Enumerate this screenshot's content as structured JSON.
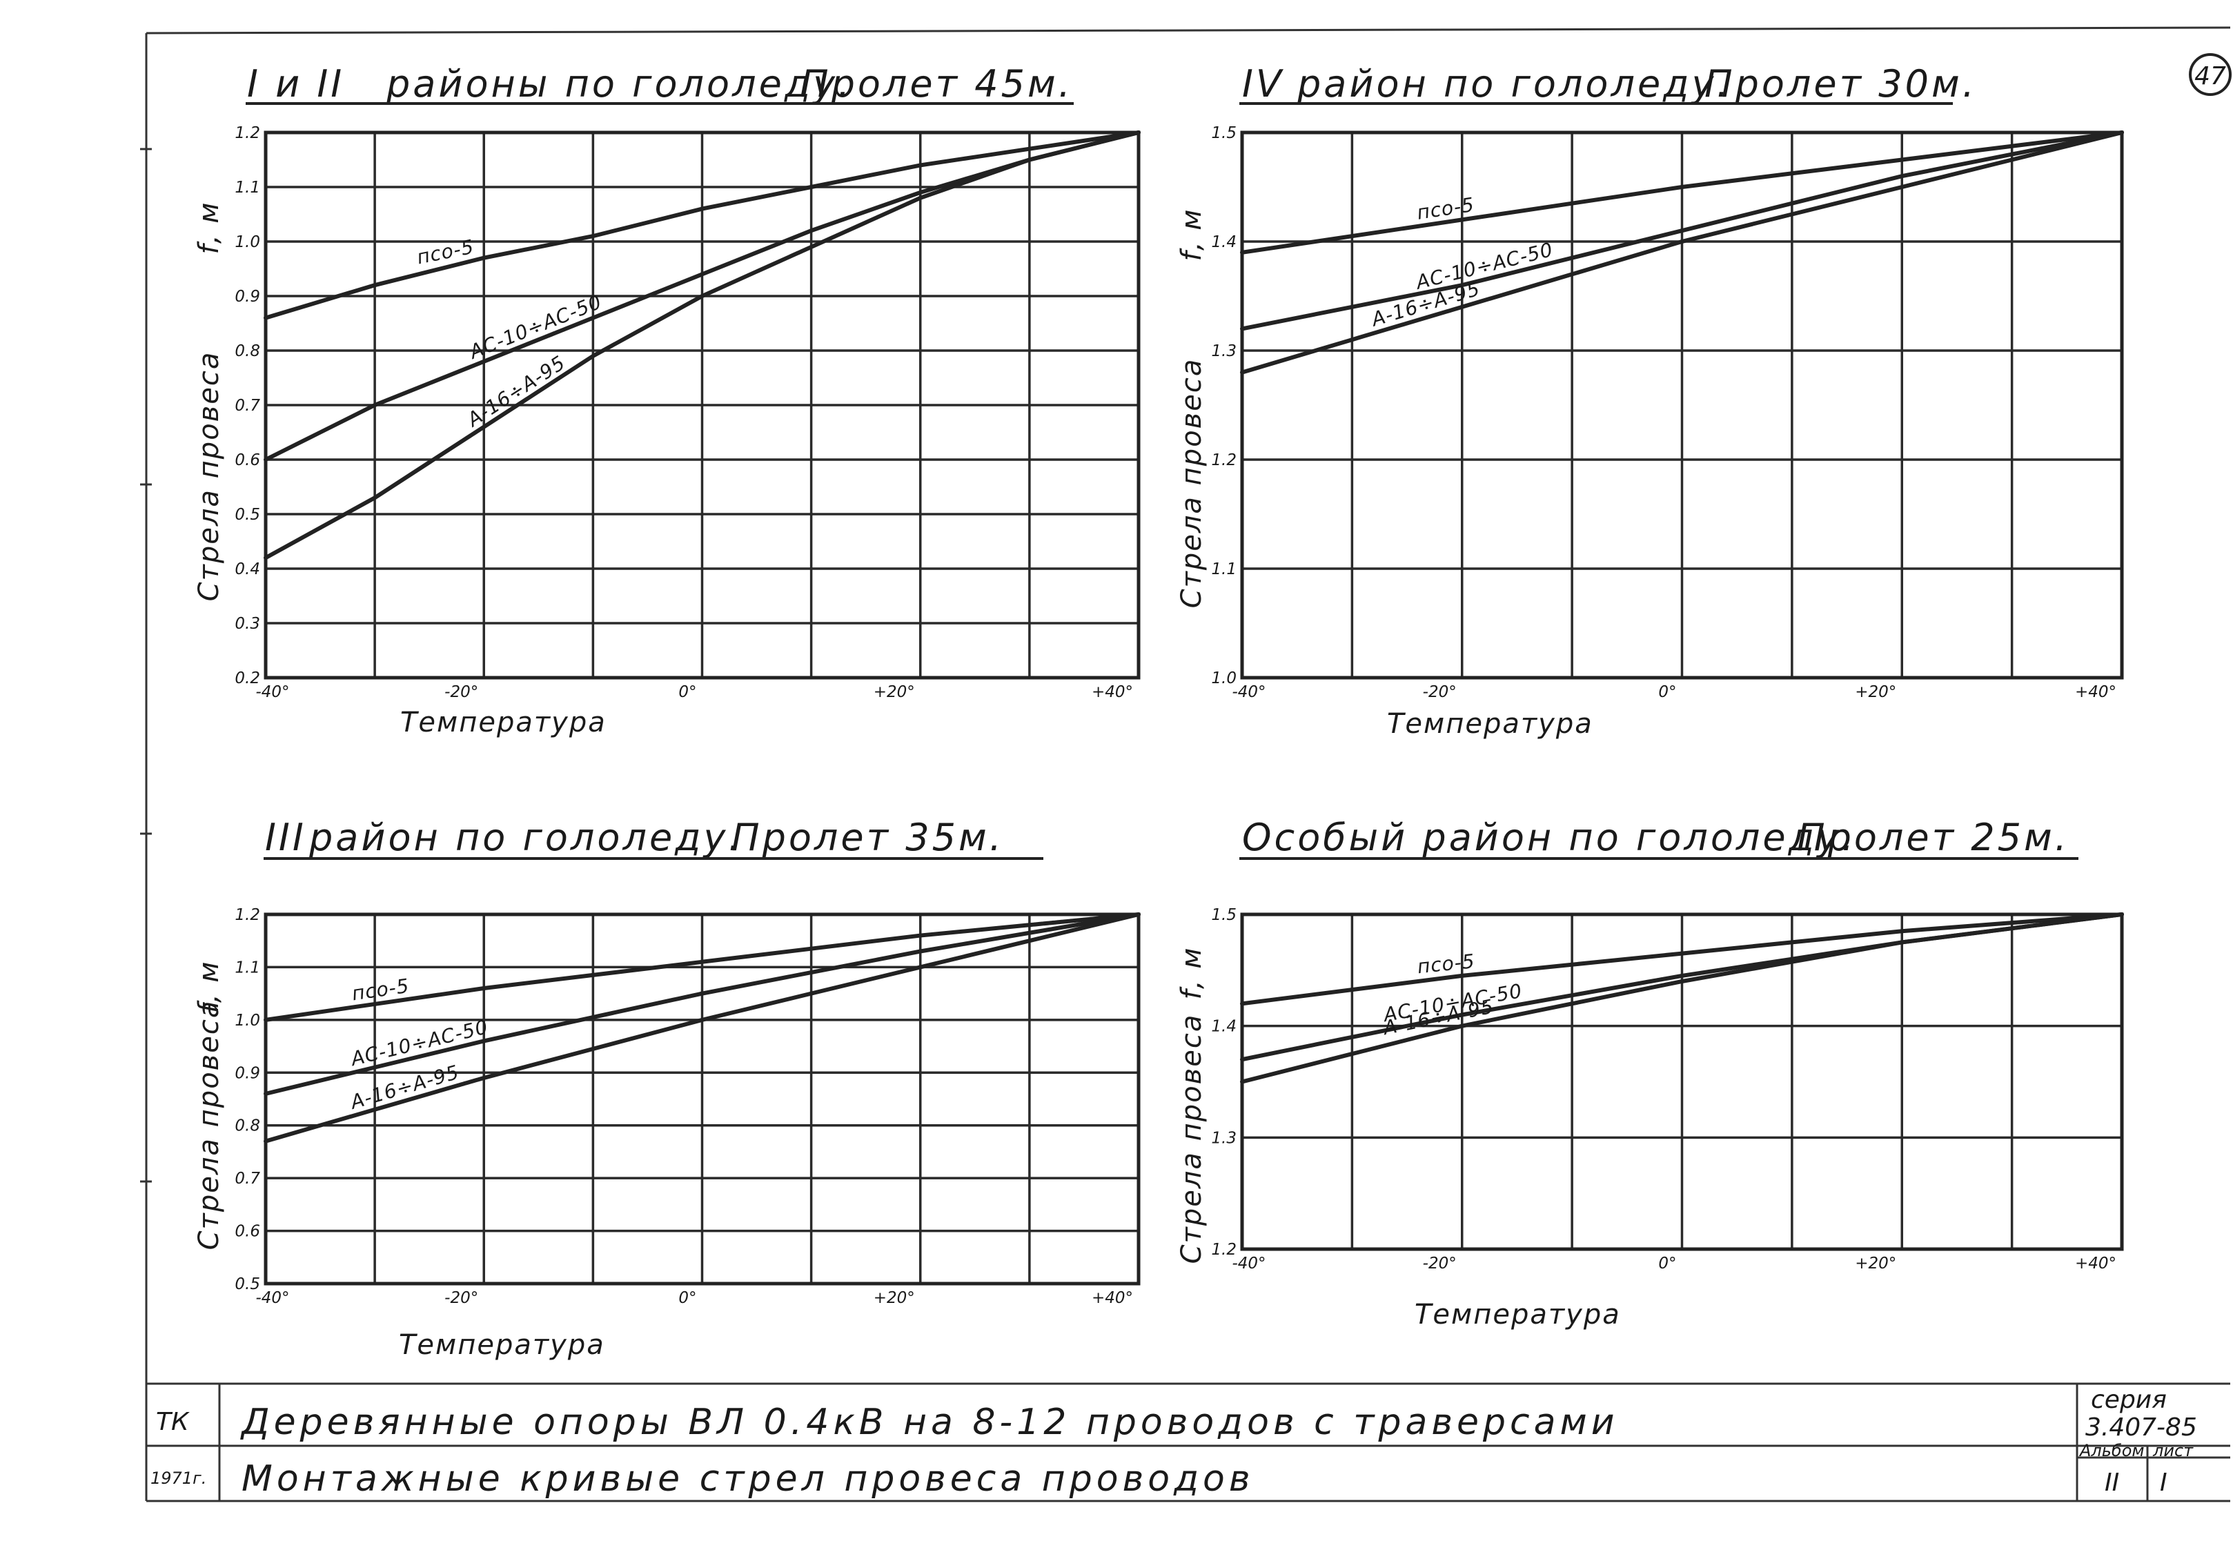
{
  "page_number": "47",
  "chart_data": [
    {
      "id": "p1",
      "type": "line",
      "title": "I и II районы по гололеду. Пролет 45м.",
      "title_parts": [
        "I и II",
        "районы по гололеду.",
        "Пролет 45м."
      ],
      "xlabel": "Температура",
      "ylabel": "Стрела провеса",
      "yunit": "f, м",
      "xlim": [
        -40,
        40
      ],
      "ylim": [
        0.2,
        1.2
      ],
      "x_ticks": [
        -40,
        -20,
        0,
        20,
        40
      ],
      "x_tick_labels": [
        "-40°",
        "-20°",
        "0°",
        "+20°",
        "+40°"
      ],
      "y_ticks": [
        0.2,
        0.3,
        0.4,
        0.5,
        0.6,
        0.7,
        0.8,
        0.9,
        1.0,
        1.1,
        1.2
      ],
      "y_tick_labels": [
        "0.2",
        "0.3",
        "0.4",
        "0.5",
        "0.6",
        "0.7",
        "0.8",
        "0.9",
        "1.0",
        "1.1",
        "1.2"
      ],
      "series": [
        {
          "name": "псо-5",
          "x": [
            -40,
            -30,
            -20,
            -10,
            0,
            10,
            20,
            30,
            40
          ],
          "y": [
            0.86,
            0.92,
            0.97,
            1.01,
            1.06,
            1.1,
            1.14,
            1.17,
            1.2
          ]
        },
        {
          "name": "АС-10÷АС-50",
          "x": [
            -40,
            -30,
            -20,
            -10,
            0,
            10,
            20,
            30,
            40
          ],
          "y": [
            0.6,
            0.7,
            0.78,
            0.86,
            0.94,
            1.02,
            1.09,
            1.15,
            1.2
          ]
        },
        {
          "name": "А-16÷А-95",
          "x": [
            -40,
            -30,
            -20,
            -10,
            0,
            10,
            20,
            30,
            40
          ],
          "y": [
            0.42,
            0.53,
            0.66,
            0.79,
            0.9,
            0.99,
            1.08,
            1.15,
            1.2
          ]
        }
      ]
    },
    {
      "id": "p2",
      "type": "line",
      "title": "IV район по гололеду. Пролет 30м.",
      "title_parts": [
        "IV",
        "район по гололеду.",
        "Пролет 30м."
      ],
      "xlabel": "Температура",
      "ylabel": "Стрела провеса",
      "yunit": "f, м",
      "xlim": [
        -40,
        40
      ],
      "ylim": [
        1.0,
        1.5
      ],
      "x_ticks": [
        -40,
        -20,
        0,
        20,
        40
      ],
      "x_tick_labels": [
        "-40°",
        "-20°",
        "0°",
        "+20°",
        "+40°"
      ],
      "y_ticks": [
        1.0,
        1.1,
        1.2,
        1.3,
        1.4,
        1.5
      ],
      "y_tick_labels": [
        "1.0",
        "1.1",
        "1.2",
        "1.3",
        "1.4",
        "1.5"
      ],
      "series": [
        {
          "name": "псо-5",
          "x": [
            -40,
            -20,
            0,
            20,
            40
          ],
          "y": [
            1.39,
            1.42,
            1.45,
            1.475,
            1.5
          ]
        },
        {
          "name": "АС-10÷АС-50",
          "x": [
            -40,
            -20,
            0,
            20,
            40
          ],
          "y": [
            1.32,
            1.36,
            1.41,
            1.46,
            1.5
          ]
        },
        {
          "name": "А-16÷А-95",
          "x": [
            -40,
            -20,
            0,
            20,
            40
          ],
          "y": [
            1.28,
            1.34,
            1.4,
            1.45,
            1.5
          ]
        }
      ]
    },
    {
      "id": "p3",
      "type": "line",
      "title": "III район по гололеду. Пролет 35м.",
      "title_parts": [
        "III",
        "район по гололеду.",
        "Пролет 35м."
      ],
      "xlabel": "Температура",
      "ylabel": "Стрела провеса",
      "yunit": "f, м",
      "xlim": [
        -40,
        40
      ],
      "ylim": [
        0.5,
        1.2
      ],
      "x_ticks": [
        -40,
        -20,
        0,
        20,
        40
      ],
      "x_tick_labels": [
        "-40°",
        "-20°",
        "0°",
        "+20°",
        "+40°"
      ],
      "y_ticks": [
        0.5,
        0.6,
        0.7,
        0.8,
        0.9,
        1.0,
        1.1,
        1.2
      ],
      "y_tick_labels": [
        "0.5",
        "0.6",
        "0.7",
        "0.8",
        "0.9",
        "1.0",
        "1.1",
        "1.2"
      ],
      "series": [
        {
          "name": "псо-5",
          "x": [
            -40,
            -20,
            0,
            20,
            40
          ],
          "y": [
            1.0,
            1.06,
            1.11,
            1.16,
            1.2
          ]
        },
        {
          "name": "АС-10÷АС-50",
          "x": [
            -40,
            -20,
            0,
            20,
            40
          ],
          "y": [
            0.86,
            0.96,
            1.05,
            1.13,
            1.2
          ]
        },
        {
          "name": "А-16÷А-95",
          "x": [
            -40,
            -20,
            0,
            20,
            40
          ],
          "y": [
            0.77,
            0.89,
            1.0,
            1.1,
            1.2
          ]
        }
      ]
    },
    {
      "id": "p4",
      "type": "line",
      "title": "Особый район по гололеду. Пролет 25м.",
      "title_parts": [
        "",
        "Особый район по гололеду.",
        "Пролет 25м."
      ],
      "xlabel": "Температура",
      "ylabel": "Стрела провеса",
      "yunit": "f, м",
      "xlim": [
        -40,
        40
      ],
      "ylim": [
        1.2,
        1.5
      ],
      "x_ticks": [
        -40,
        -20,
        0,
        20,
        40
      ],
      "x_tick_labels": [
        "-40°",
        "-20°",
        "0°",
        "+20°",
        "+40°"
      ],
      "y_ticks": [
        1.2,
        1.3,
        1.4,
        1.5
      ],
      "y_tick_labels": [
        "1.2",
        "1.3",
        "1.4",
        "1.5"
      ],
      "series": [
        {
          "name": "псо-5",
          "x": [
            -40,
            -20,
            0,
            20,
            40
          ],
          "y": [
            1.42,
            1.445,
            1.465,
            1.485,
            1.5
          ]
        },
        {
          "name": "АС-10÷АС-50",
          "x": [
            -40,
            -20,
            0,
            20,
            40
          ],
          "y": [
            1.37,
            1.41,
            1.445,
            1.475,
            1.5
          ]
        },
        {
          "name": "А-16÷А-95",
          "x": [
            -40,
            -20,
            0,
            20,
            40
          ],
          "y": [
            1.35,
            1.4,
            1.44,
            1.475,
            1.5
          ]
        }
      ]
    }
  ],
  "title_block": {
    "org": "ТК",
    "year": "1971г.",
    "line1": "Деревянные опоры ВЛ 0.4кВ на 8-12 проводов с траверсами",
    "line2": "Монтажные кривые стрел провеса проводов",
    "series_label": "серия",
    "series_value": "3.407-85",
    "album_label": "Альбом",
    "album_value": "II",
    "sheet_label": "лист",
    "sheet_value": "I"
  }
}
